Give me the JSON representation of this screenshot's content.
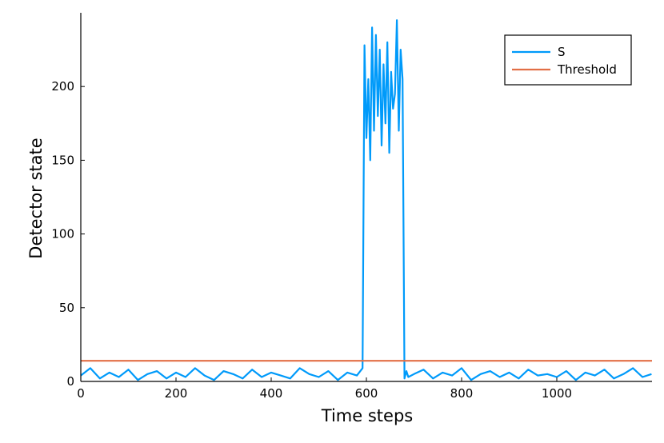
{
  "chart_data": {
    "type": "line",
    "title": "",
    "xlabel": "Time steps",
    "ylabel": "Detector state",
    "xlim": [
      0,
      1200
    ],
    "ylim": [
      0,
      250
    ],
    "xticks": [
      0,
      200,
      400,
      600,
      800,
      1000
    ],
    "yticks": [
      0,
      50,
      100,
      150,
      200
    ],
    "grid": false,
    "legend_position": "top-right",
    "series": [
      {
        "name": "S",
        "color": "#009AFA",
        "x": [
          0,
          20,
          40,
          60,
          80,
          100,
          120,
          140,
          160,
          180,
          200,
          220,
          240,
          260,
          280,
          300,
          320,
          340,
          360,
          380,
          400,
          420,
          440,
          460,
          480,
          500,
          520,
          540,
          560,
          580,
          592,
          596,
          600,
          604,
          608,
          612,
          616,
          620,
          624,
          628,
          632,
          636,
          640,
          644,
          648,
          652,
          656,
          660,
          664,
          668,
          672,
          676,
          680,
          684,
          688,
          700,
          720,
          740,
          760,
          780,
          800,
          820,
          840,
          860,
          880,
          900,
          920,
          940,
          960,
          980,
          1000,
          1020,
          1040,
          1060,
          1080,
          1100,
          1120,
          1140,
          1160,
          1180,
          1199
        ],
        "y": [
          4,
          9,
          2,
          6,
          3,
          8,
          1,
          5,
          7,
          2,
          6,
          3,
          9,
          4,
          1,
          7,
          5,
          2,
          8,
          3,
          6,
          4,
          2,
          9,
          5,
          3,
          7,
          1,
          6,
          4,
          9,
          228,
          165,
          205,
          150,
          240,
          170,
          235,
          180,
          225,
          160,
          215,
          175,
          230,
          155,
          210,
          185,
          195,
          245,
          170,
          225,
          205,
          2,
          7,
          3,
          5,
          8,
          2,
          6,
          4,
          9,
          1,
          5,
          7,
          3,
          6,
          2,
          8,
          4,
          5,
          3,
          7,
          1,
          6,
          4,
          8,
          2,
          5,
          9,
          3,
          5
        ]
      },
      {
        "name": "Threshold",
        "color": "#E26F46",
        "x": [
          0,
          1200
        ],
        "y": [
          14,
          14
        ]
      }
    ]
  }
}
